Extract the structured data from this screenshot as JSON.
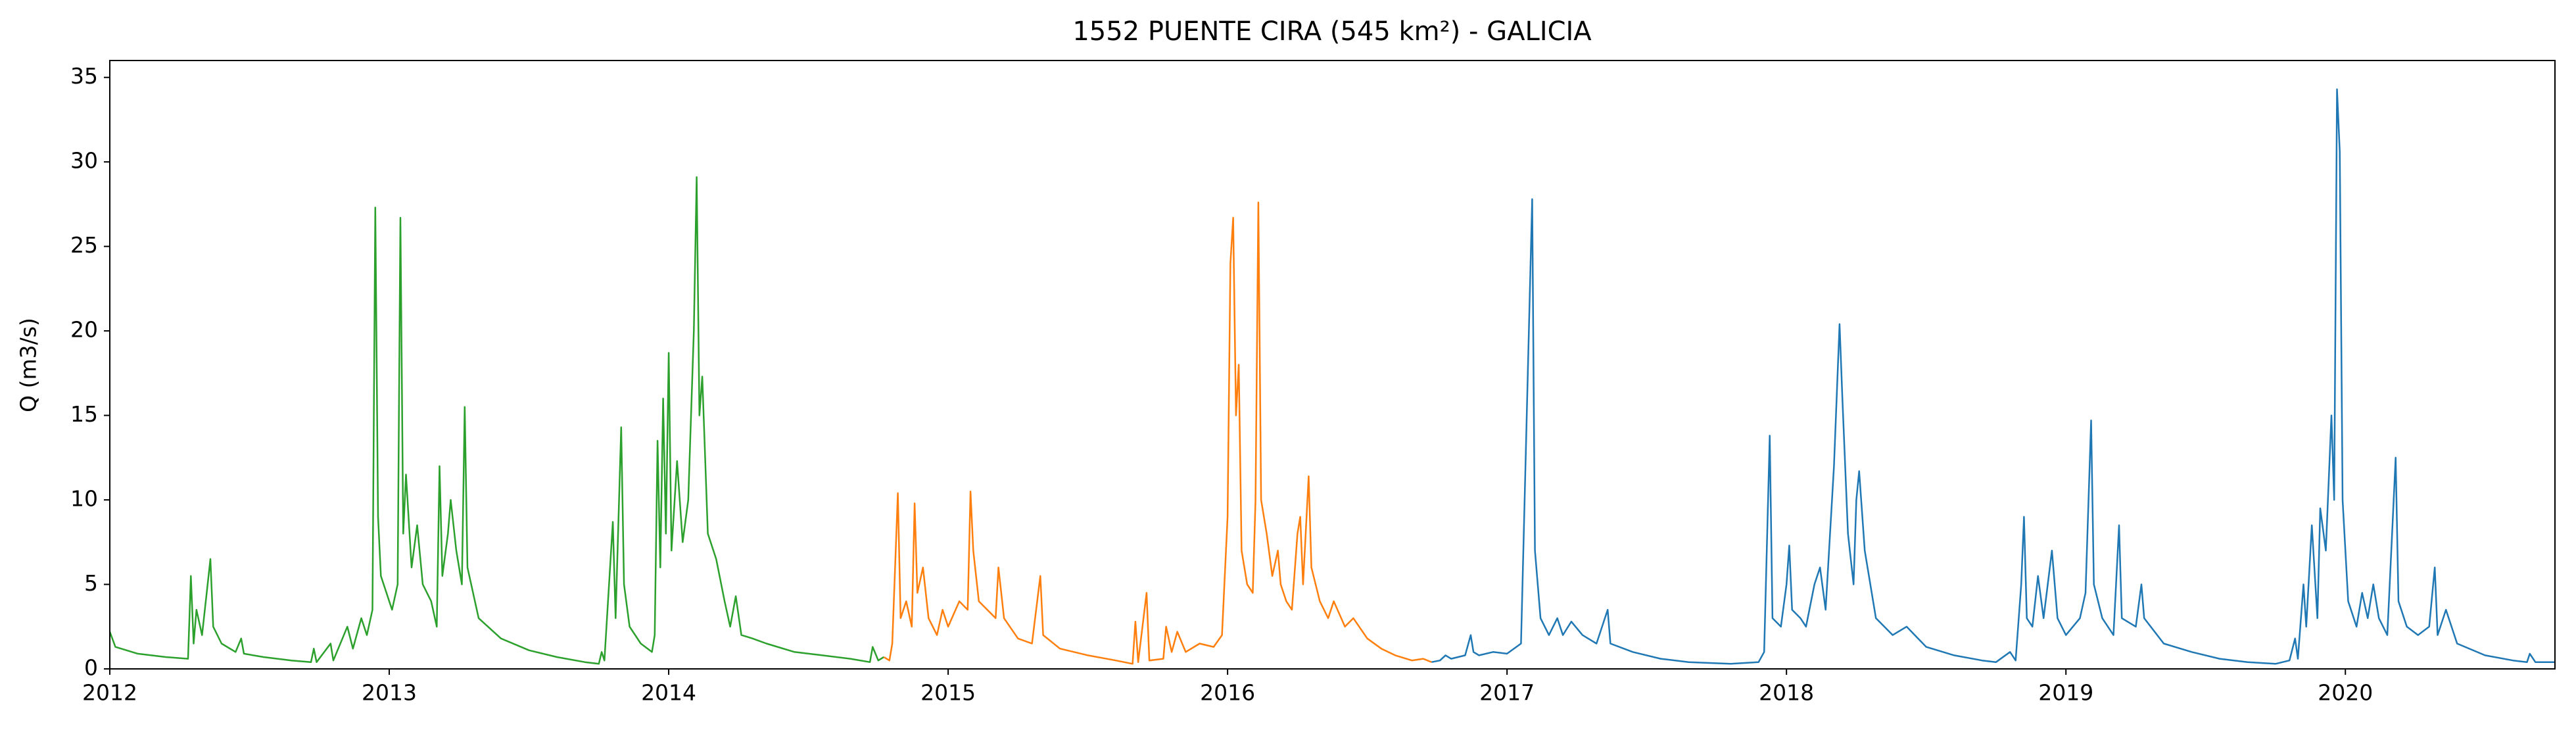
{
  "chart_data": {
    "type": "line",
    "title": "1552 PUENTE CIRA (545 km²) - GALICIA",
    "y_label": "Q (m3/s)",
    "xlim": [
      2012,
      2020.75
    ],
    "xticks": [
      2012,
      2013,
      2014,
      2015,
      2016,
      2017,
      2018,
      2019,
      2020
    ],
    "ylim": [
      0,
      36
    ],
    "yticks": [
      0,
      5,
      10,
      15,
      20,
      25,
      30,
      35
    ],
    "grid": false,
    "series": [
      {
        "color": "#2ca02c",
        "x": [
          2012.0,
          2012.02,
          2012.1,
          2012.2,
          2012.28,
          2012.29,
          2012.3,
          2012.31,
          2012.33,
          2012.35,
          2012.36,
          2012.37,
          2012.4,
          2012.45,
          2012.47,
          2012.48,
          2012.55,
          2012.65,
          2012.72,
          2012.73,
          2012.74,
          2012.79,
          2012.8,
          2012.85,
          2012.87,
          2012.9,
          2012.92,
          2012.94,
          2012.95,
          2012.96,
          2012.97,
          2012.99,
          2013.01,
          2013.03,
          2013.04,
          2013.05,
          2013.06,
          2013.08,
          2013.1,
          2013.12,
          2013.15,
          2013.17,
          2013.18,
          2013.19,
          2013.21,
          2013.22,
          2013.24,
          2013.26,
          2013.27,
          2013.28,
          2013.32,
          2013.4,
          2013.5,
          2013.6,
          2013.7,
          2013.75,
          2013.76,
          2013.77,
          2013.8,
          2013.81,
          2013.83,
          2013.84,
          2013.86,
          2013.9,
          2013.94,
          2013.95,
          2013.96,
          2013.97,
          2013.98,
          2013.99,
          2014.0,
          2014.01,
          2014.03,
          2014.05,
          2014.07,
          2014.09,
          2014.1,
          2014.11,
          2014.12,
          2014.14,
          2014.17,
          2014.2,
          2014.22,
          2014.24,
          2014.26,
          2014.3,
          2014.35,
          2014.45,
          2014.55,
          2014.65,
          2014.72,
          2014.73,
          2014.75,
          2014.77
        ],
        "values": [
          2.2,
          1.3,
          0.9,
          0.7,
          0.6,
          5.5,
          1.5,
          3.5,
          2.0,
          5.0,
          6.5,
          2.5,
          1.5,
          1.0,
          1.8,
          0.9,
          0.7,
          0.5,
          0.4,
          1.2,
          0.4,
          1.5,
          0.5,
          2.5,
          1.2,
          3.0,
          2.0,
          3.5,
          27.3,
          9.0,
          5.5,
          4.5,
          3.5,
          5.0,
          26.7,
          8.0,
          11.5,
          6.0,
          8.5,
          5.0,
          4.0,
          2.5,
          12.0,
          5.5,
          8.0,
          10.0,
          7.0,
          5.0,
          15.5,
          6.0,
          3.0,
          1.8,
          1.1,
          0.7,
          0.4,
          0.3,
          1.0,
          0.5,
          8.7,
          3.0,
          14.3,
          5.0,
          2.5,
          1.5,
          1.0,
          2.0,
          13.5,
          6.0,
          16.0,
          8.0,
          18.7,
          7.0,
          12.3,
          7.5,
          10.0,
          20.0,
          29.1,
          15.0,
          17.3,
          8.0,
          6.5,
          4.0,
          2.5,
          4.3,
          2.0,
          1.8,
          1.5,
          1.0,
          0.8,
          0.6,
          0.4,
          1.3,
          0.5,
          0.7
        ]
      },
      {
        "color": "#ff7f0e",
        "x": [
          2014.77,
          2014.79,
          2014.8,
          2014.82,
          2014.83,
          2014.85,
          2014.87,
          2014.88,
          2014.89,
          2014.91,
          2014.93,
          2014.96,
          2014.98,
          2015.0,
          2015.04,
          2015.07,
          2015.08,
          2015.09,
          2015.11,
          2015.14,
          2015.17,
          2015.18,
          2015.2,
          2015.25,
          2015.3,
          2015.33,
          2015.34,
          2015.4,
          2015.5,
          2015.6,
          2015.66,
          2015.67,
          2015.68,
          2015.71,
          2015.72,
          2015.77,
          2015.78,
          2015.8,
          2015.82,
          2015.85,
          2015.9,
          2015.95,
          2015.98,
          2016.0,
          2016.01,
          2016.02,
          2016.03,
          2016.04,
          2016.05,
          2016.07,
          2016.09,
          2016.1,
          2016.11,
          2016.12,
          2016.14,
          2016.16,
          2016.18,
          2016.19,
          2016.21,
          2016.23,
          2016.25,
          2016.26,
          2016.27,
          2016.29,
          2016.3,
          2016.33,
          2016.36,
          2016.38,
          2016.42,
          2016.45,
          2016.5,
          2016.55,
          2016.6,
          2016.66,
          2016.7,
          2016.73
        ],
        "values": [
          0.7,
          0.5,
          1.5,
          10.4,
          3.0,
          4.0,
          2.5,
          9.8,
          4.5,
          6.0,
          3.0,
          2.0,
          3.5,
          2.5,
          4.0,
          3.5,
          10.5,
          7.0,
          4.0,
          3.5,
          3.0,
          6.0,
          3.0,
          1.8,
          1.5,
          5.5,
          2.0,
          1.2,
          0.8,
          0.5,
          0.3,
          2.8,
          0.4,
          4.5,
          0.5,
          0.6,
          2.5,
          1.0,
          2.2,
          1.0,
          1.5,
          1.3,
          2.0,
          9.0,
          24.0,
          26.7,
          15.0,
          18.0,
          7.0,
          5.0,
          4.5,
          10.0,
          27.6,
          10.0,
          8.0,
          5.5,
          7.0,
          5.0,
          4.0,
          3.5,
          8.0,
          9.0,
          5.0,
          11.4,
          6.0,
          4.0,
          3.0,
          4.0,
          2.5,
          3.0,
          1.8,
          1.2,
          0.8,
          0.5,
          0.6,
          0.4
        ]
      },
      {
        "color": "#1f77b4",
        "x": [
          2016.73,
          2016.76,
          2016.78,
          2016.8,
          2016.85,
          2016.87,
          2016.88,
          2016.9,
          2016.95,
          2017.0,
          2017.05,
          2017.09,
          2017.1,
          2017.12,
          2017.15,
          2017.18,
          2017.2,
          2017.23,
          2017.27,
          2017.32,
          2017.36,
          2017.37,
          2017.45,
          2017.55,
          2017.65,
          2017.8,
          2017.9,
          2017.92,
          2017.94,
          2017.95,
          2017.98,
          2018.0,
          2018.01,
          2018.02,
          2018.05,
          2018.07,
          2018.1,
          2018.12,
          2018.14,
          2018.17,
          2018.19,
          2018.2,
          2018.22,
          2018.24,
          2018.25,
          2018.26,
          2018.28,
          2018.3,
          2018.32,
          2018.38,
          2018.43,
          2018.5,
          2018.6,
          2018.7,
          2018.75,
          2018.8,
          2018.82,
          2018.84,
          2018.85,
          2018.86,
          2018.88,
          2018.9,
          2018.92,
          2018.95,
          2018.97,
          2019.0,
          2019.05,
          2019.07,
          2019.09,
          2019.1,
          2019.13,
          2019.17,
          2019.19,
          2019.2,
          2019.25,
          2019.27,
          2019.28,
          2019.35,
          2019.45,
          2019.55,
          2019.65,
          2019.75,
          2019.8,
          2019.82,
          2019.83,
          2019.85,
          2019.86,
          2019.88,
          2019.9,
          2019.91,
          2019.93,
          2019.95,
          2019.96,
          2019.97,
          2019.98,
          2019.99,
          2020.01,
          2020.04,
          2020.06,
          2020.08,
          2020.1,
          2020.12,
          2020.15,
          2020.17,
          2020.18,
          2020.19,
          2020.22,
          2020.26,
          2020.3,
          2020.32,
          2020.33,
          2020.36,
          2020.4,
          2020.5,
          2020.6,
          2020.65,
          2020.66,
          2020.68,
          2020.75
        ],
        "values": [
          0.4,
          0.5,
          0.8,
          0.6,
          0.8,
          2.0,
          1.0,
          0.8,
          1.0,
          0.9,
          1.5,
          27.8,
          7.0,
          3.0,
          2.0,
          3.0,
          2.0,
          2.8,
          2.0,
          1.5,
          3.5,
          1.5,
          1.0,
          0.6,
          0.4,
          0.3,
          0.4,
          1.0,
          13.8,
          3.0,
          2.5,
          5.0,
          7.3,
          3.5,
          3.0,
          2.5,
          5.0,
          6.0,
          3.5,
          12.0,
          20.4,
          16.0,
          8.0,
          5.0,
          10.0,
          11.7,
          7.0,
          5.0,
          3.0,
          2.0,
          2.5,
          1.3,
          0.8,
          0.5,
          0.4,
          1.0,
          0.5,
          5.0,
          9.0,
          3.0,
          2.5,
          5.5,
          3.0,
          7.0,
          3.0,
          2.0,
          3.0,
          4.5,
          14.7,
          5.0,
          3.0,
          2.0,
          8.5,
          3.0,
          2.5,
          5.0,
          3.0,
          1.5,
          1.0,
          0.6,
          0.4,
          0.3,
          0.5,
          1.8,
          0.6,
          5.0,
          2.5,
          8.5,
          3.0,
          9.5,
          7.0,
          15.0,
          10.0,
          34.3,
          30.6,
          10.0,
          4.0,
          2.5,
          4.5,
          3.0,
          5.0,
          3.0,
          2.0,
          9.0,
          12.5,
          4.0,
          2.5,
          2.0,
          2.5,
          6.0,
          2.0,
          3.5,
          1.5,
          0.8,
          0.5,
          0.4,
          0.9,
          0.4,
          0.4
        ]
      }
    ]
  }
}
